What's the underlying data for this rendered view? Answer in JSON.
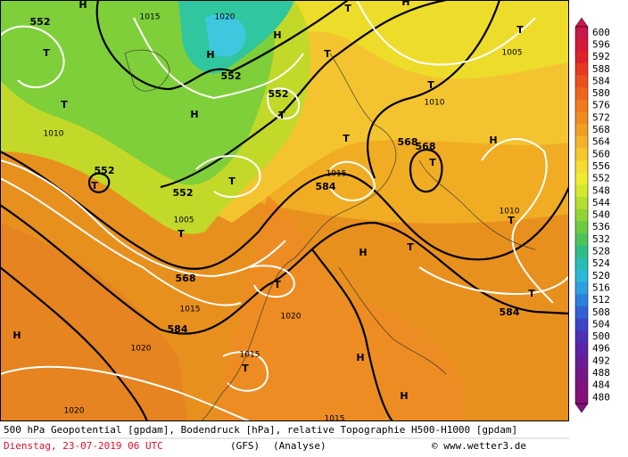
{
  "legend": {
    "labels": [
      "600",
      "596",
      "592",
      "588",
      "584",
      "580",
      "576",
      "572",
      "568",
      "564",
      "560",
      "556",
      "552",
      "548",
      "544",
      "540",
      "536",
      "532",
      "528",
      "524",
      "520",
      "516",
      "512",
      "508",
      "504",
      "500",
      "496",
      "492",
      "488",
      "484",
      "480"
    ]
  },
  "map_labels": [
    "552",
    "T",
    "H",
    "1015",
    "1020",
    "H",
    "H",
    "552",
    "552",
    "T",
    "H",
    "T",
    "1010",
    "552",
    "T",
    "552",
    "T",
    "T",
    "1005",
    "568",
    "584",
    "1015",
    "1020",
    "H",
    "1020",
    "T",
    "H",
    "T",
    "T",
    "1015",
    "584",
    "568",
    "568",
    "T",
    "H",
    "T",
    "1010",
    "1005",
    "T",
    "T",
    "H",
    "1010",
    "T",
    "584",
    "T",
    "T",
    "1020",
    "H",
    "T",
    "1015",
    "H",
    "1015"
  ],
  "caption": {
    "line1": "500 hPa Geopotential [gpdam], Bodendruck [hPa], relative Topographie H500-H1000 [gpdam]",
    "date": "Dienstag, 23-07-2019  06 UTC",
    "model": "(GFS)",
    "run": "(Analyse)",
    "credit": "© www.wetter3.de"
  }
}
